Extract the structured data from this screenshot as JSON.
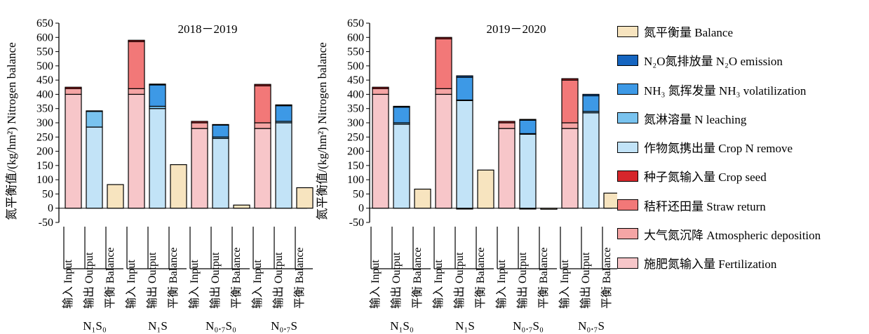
{
  "chart_data": [
    {
      "type": "bar",
      "title": "2018－2019",
      "ylabel": "氮平衡值/(kg/hm²) Nitrogen balance",
      "ylim": [
        -50,
        650
      ],
      "yticks": [
        -50,
        0,
        50,
        100,
        150,
        200,
        250,
        300,
        350,
        400,
        450,
        500,
        550,
        600,
        650
      ],
      "bar_labels": [
        "输入 Input",
        "输出 Output",
        "平衡 Balance"
      ],
      "groups": [
        {
          "label": "N₁S₀",
          "input": {
            "fertilization": 400,
            "deposition": 20,
            "straw": 0,
            "seed": 5
          },
          "output": {
            "crop_remove": 285,
            "leaching": 55,
            "nh3": 0,
            "n2o": 2
          },
          "balance": 83
        },
        {
          "label": "N₁S",
          "input": {
            "fertilization": 400,
            "deposition": 20,
            "straw": 165,
            "seed": 5
          },
          "output": {
            "crop_remove": 350,
            "leaching": 8,
            "nh3": 75,
            "n2o": 3
          },
          "balance": 153
        },
        {
          "label": "N₀.₇S₀",
          "input": {
            "fertilization": 280,
            "deposition": 20,
            "straw": 0,
            "seed": 5
          },
          "output": {
            "crop_remove": 245,
            "leaching": 5,
            "nh3": 42,
            "n2o": 2
          },
          "balance": 11
        },
        {
          "label": "N₀.₇S",
          "input": {
            "fertilization": 280,
            "deposition": 20,
            "straw": 130,
            "seed": 5
          },
          "output": {
            "crop_remove": 300,
            "leaching": 5,
            "nh3": 55,
            "n2o": 3
          },
          "balance": 72
        }
      ]
    },
    {
      "type": "bar",
      "title": "2019－2020",
      "ylabel": "氮平衡值/(kg/hm²) Nitrogen balance",
      "ylim": [
        -50,
        650
      ],
      "yticks": [
        -50,
        0,
        50,
        100,
        150,
        200,
        250,
        300,
        350,
        400,
        450,
        500,
        550,
        600,
        650
      ],
      "bar_labels": [
        "输入 Input",
        "输出 Output",
        "平衡 Balance"
      ],
      "groups": [
        {
          "label": "N₁S₀",
          "input": {
            "fertilization": 400,
            "deposition": 20,
            "straw": 0,
            "seed": 5
          },
          "output": {
            "crop_remove": 295,
            "leaching": 5,
            "nh3": 55,
            "n2o": 3
          },
          "balance": 67
        },
        {
          "label": "N₁S",
          "input": {
            "fertilization": 400,
            "deposition": 20,
            "straw": 175,
            "seed": 5
          },
          "output": {
            "crop_remove": 378,
            "leaching": 2,
            "nh3": 80,
            "n2o": 5,
            "negative": 3
          },
          "balance": 134
        },
        {
          "label": "N₀.₇S₀",
          "input": {
            "fertilization": 280,
            "deposition": 20,
            "straw": 0,
            "seed": 5
          },
          "output": {
            "crop_remove": 260,
            "leaching": 2,
            "nh3": 47,
            "n2o": 3,
            "negative": 3
          },
          "balance": -2
        },
        {
          "label": "N₀.₇S",
          "input": {
            "fertilization": 280,
            "deposition": 20,
            "straw": 150,
            "seed": 5
          },
          "output": {
            "crop_remove": 335,
            "leaching": 5,
            "nh3": 55,
            "n2o": 5
          },
          "balance": 53
        }
      ]
    }
  ],
  "legend": [
    {
      "key": "balance",
      "color": "#f7e4bf",
      "label": "氮平衡量 Balance"
    },
    {
      "key": "n2o",
      "color": "#1565c0",
      "label": "N₂O氮排放量 N₂O emission"
    },
    {
      "key": "nh3",
      "color": "#3d99e6",
      "label": "NH₃ 氮挥发量 NH₃ volatilization"
    },
    {
      "key": "leaching",
      "color": "#79c3ef",
      "label": "氮淋溶量 N leaching"
    },
    {
      "key": "crop_remove",
      "color": "#c2e3f7",
      "label": "作物氮携出量 Crop N remove"
    },
    {
      "key": "seed",
      "color": "#d6262b",
      "label": "种子氮输入量 Crop seed"
    },
    {
      "key": "straw",
      "color": "#f27878",
      "label": "秸秆还田量 Straw return"
    },
    {
      "key": "deposition",
      "color": "#f5a5a5",
      "label": "大气氮沉降 Atmospheric deposition"
    },
    {
      "key": "fertilization",
      "color": "#f7c6c9",
      "label": "施肥氮输入量 Fertilization"
    }
  ]
}
